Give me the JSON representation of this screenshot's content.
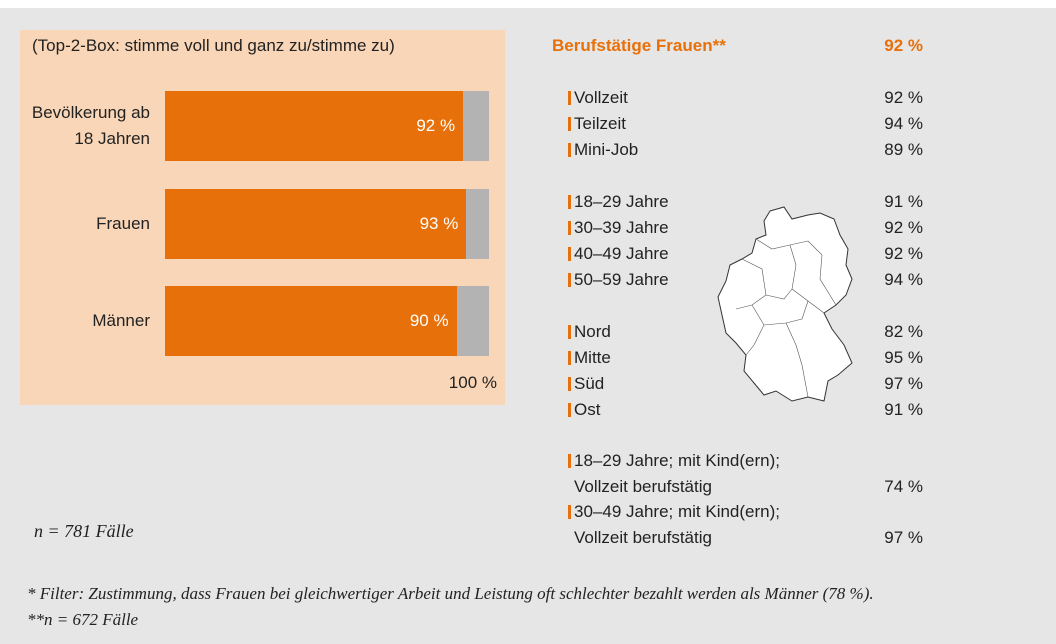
{
  "chart_data": {
    "type": "bar",
    "orientation": "horizontal",
    "title": "(Top-2-Box: stimme voll und ganz zu/stimme zu)",
    "categories": [
      "Bevölkerung ab 18 Jahren",
      "Frauen",
      "Männer"
    ],
    "values": [
      92,
      93,
      90
    ],
    "value_labels": [
      "92 %",
      "93 %",
      "90 %"
    ],
    "color": "#e8700a",
    "track_color": "#b3b3b3",
    "xlim": [
      0,
      100
    ],
    "xticks": [
      {
        "value": 100,
        "label": "100 %"
      }
    ],
    "note": "n = 781 Fälle"
  },
  "breakdown": {
    "title": "Berufstätige Frauen**",
    "value": "92 %",
    "groups": [
      [
        {
          "label": "Vollzeit",
          "value": "92 %"
        },
        {
          "label": "Teilzeit",
          "value": "94 %"
        },
        {
          "label": "Mini-Job",
          "value": "89 %"
        }
      ],
      [
        {
          "label": "18–29 Jahre",
          "value": "91 %"
        },
        {
          "label": "30–39 Jahre",
          "value": "92 %"
        },
        {
          "label": "40–49 Jahre",
          "value": "92 %"
        },
        {
          "label": "50–59 Jahre",
          "value": "94 %"
        }
      ],
      [
        {
          "label": "Nord",
          "value": "82 %"
        },
        {
          "label": "Mitte",
          "value": "95 %"
        },
        {
          "label": "Süd",
          "value": "97 %"
        },
        {
          "label": "Ost",
          "value": "91 %"
        }
      ],
      [
        {
          "label": "18–29 Jahre; mit Kind(ern); Vollzeit berufstätig",
          "value": "74 %"
        },
        {
          "label": "30–49 Jahre; mit Kind(ern); Vollzeit berufstätig",
          "value": "97 %"
        }
      ]
    ]
  },
  "footnotes": [
    "* Filter: Zustimmung, dass Frauen bei gleichwertiger Arbeit und Leistung oft schlechter bezahlt werden als Männer (78 %).",
    "**n = 672 Fälle"
  ]
}
